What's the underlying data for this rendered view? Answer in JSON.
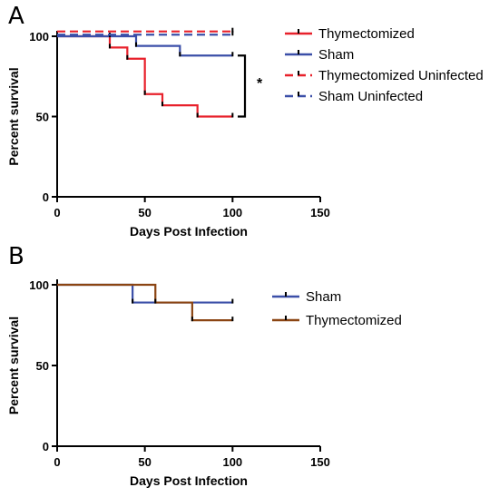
{
  "panels": {
    "a": {
      "letter": "A"
    },
    "b": {
      "letter": "B"
    }
  },
  "chart_data": [
    {
      "type": "line",
      "subtype": "kaplan-meier",
      "panel": "A",
      "xlabel": "Days Post Infection",
      "ylabel": "Percent survival",
      "xlim": [
        0,
        150
      ],
      "ylim": [
        0,
        100
      ],
      "xticks": [
        0,
        50,
        100,
        150
      ],
      "yticks": [
        0,
        50,
        100
      ],
      "grid": false,
      "legend_position": "right",
      "annotation": "*",
      "series": [
        {
          "name": "Thymectomized",
          "color": "#e8212b",
          "dashed": false,
          "x": [
            0,
            30,
            40,
            50,
            60,
            80,
            100
          ],
          "y": [
            100,
            93,
            86,
            64,
            57,
            50,
            50
          ]
        },
        {
          "name": "Sham",
          "color": "#3b4fa8",
          "dashed": false,
          "x": [
            0,
            30,
            45,
            70,
            100
          ],
          "y": [
            100,
            100,
            94,
            88,
            88
          ]
        },
        {
          "name": "Thymectomized Uninfected",
          "color": "#e8212b",
          "dashed": true,
          "x": [
            0,
            100
          ],
          "y": [
            103,
            103
          ]
        },
        {
          "name": "Sham Uninfected",
          "color": "#3b4fa8",
          "dashed": true,
          "x": [
            0,
            100
          ],
          "y": [
            101,
            101
          ]
        }
      ]
    },
    {
      "type": "line",
      "subtype": "kaplan-meier",
      "panel": "B",
      "xlabel": "Days Post Infection",
      "ylabel": "Percent survival",
      "xlim": [
        0,
        150
      ],
      "ylim": [
        0,
        100
      ],
      "xticks": [
        0,
        50,
        100,
        150
      ],
      "yticks": [
        0,
        50,
        100
      ],
      "grid": false,
      "legend_position": "right",
      "series": [
        {
          "name": "Sham",
          "color": "#3b4fa8",
          "dashed": false,
          "x": [
            0,
            43,
            100
          ],
          "y": [
            100,
            89,
            89
          ]
        },
        {
          "name": "Thymectomized",
          "color": "#8b4513",
          "dashed": false,
          "x": [
            0,
            56,
            77,
            100
          ],
          "y": [
            100,
            89,
            78,
            78
          ]
        }
      ]
    }
  ]
}
